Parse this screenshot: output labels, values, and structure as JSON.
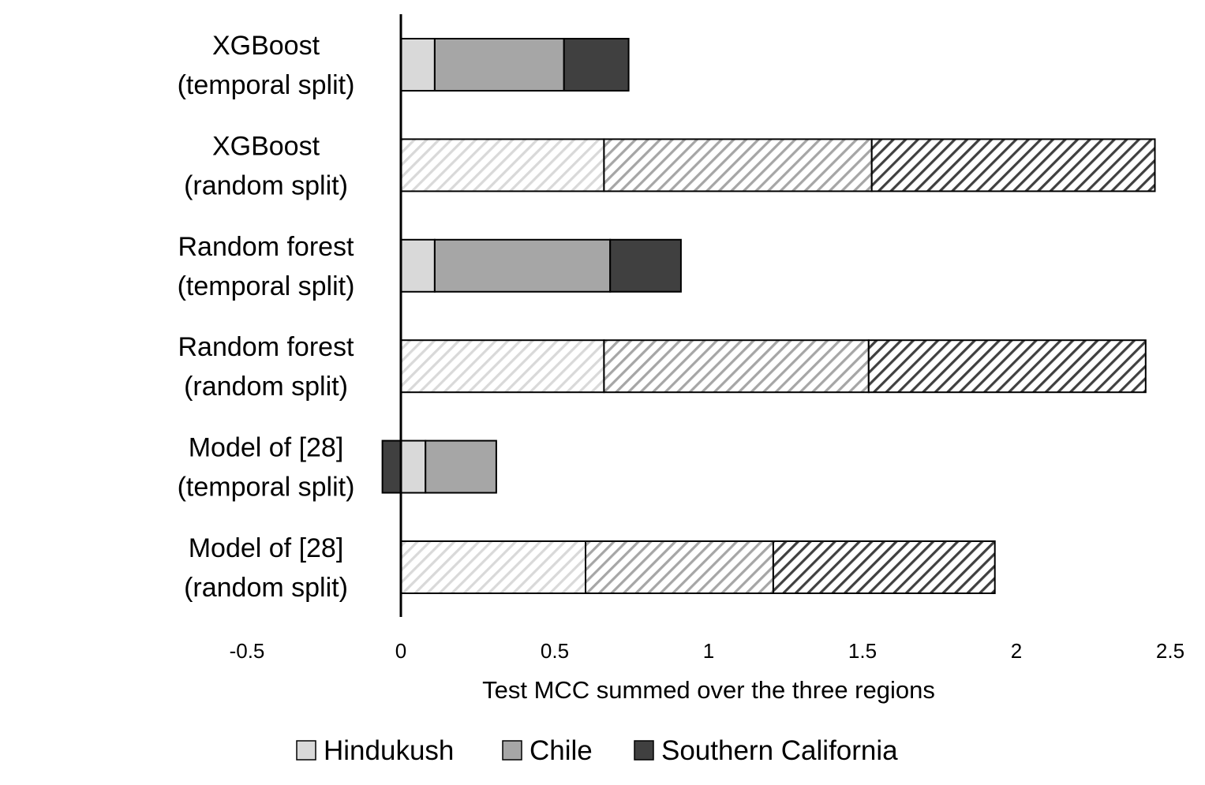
{
  "chart_data": {
    "type": "bar",
    "orientation": "horizontal",
    "stacked": true,
    "categories": [
      [
        "XGBoost",
        "(temporal split)"
      ],
      [
        "XGBoost",
        "(random split)"
      ],
      [
        "Random forest",
        "(temporal split)"
      ],
      [
        "Random forest",
        "(random split)"
      ],
      [
        "Model of [28]",
        "(temporal split)"
      ],
      [
        "Model of [28]",
        "(random split)"
      ]
    ],
    "pattern": [
      "solid",
      "hatched",
      "solid",
      "hatched",
      "solid",
      "hatched"
    ],
    "series": [
      {
        "name": "Hindukush",
        "color": "#d9d9d9",
        "values": [
          0.11,
          0.66,
          0.11,
          0.66,
          0.08,
          0.6
        ]
      },
      {
        "name": "Chile",
        "color": "#a6a6a6",
        "values": [
          0.42,
          0.87,
          0.57,
          0.86,
          0.23,
          0.61
        ]
      },
      {
        "name": "Southern California",
        "color": "#404040",
        "values": [
          0.21,
          0.92,
          0.23,
          0.9,
          -0.06,
          0.72
        ]
      }
    ],
    "xlim": [
      -0.5,
      2.5
    ],
    "xticks": [
      "-0.5",
      "0",
      "0.5",
      "1",
      "1.5",
      "2",
      "2.5"
    ],
    "xlabel": "Test MCC summed over the three regions",
    "ylabel": "",
    "title": "",
    "grid": false,
    "legend_position": "bottom"
  }
}
